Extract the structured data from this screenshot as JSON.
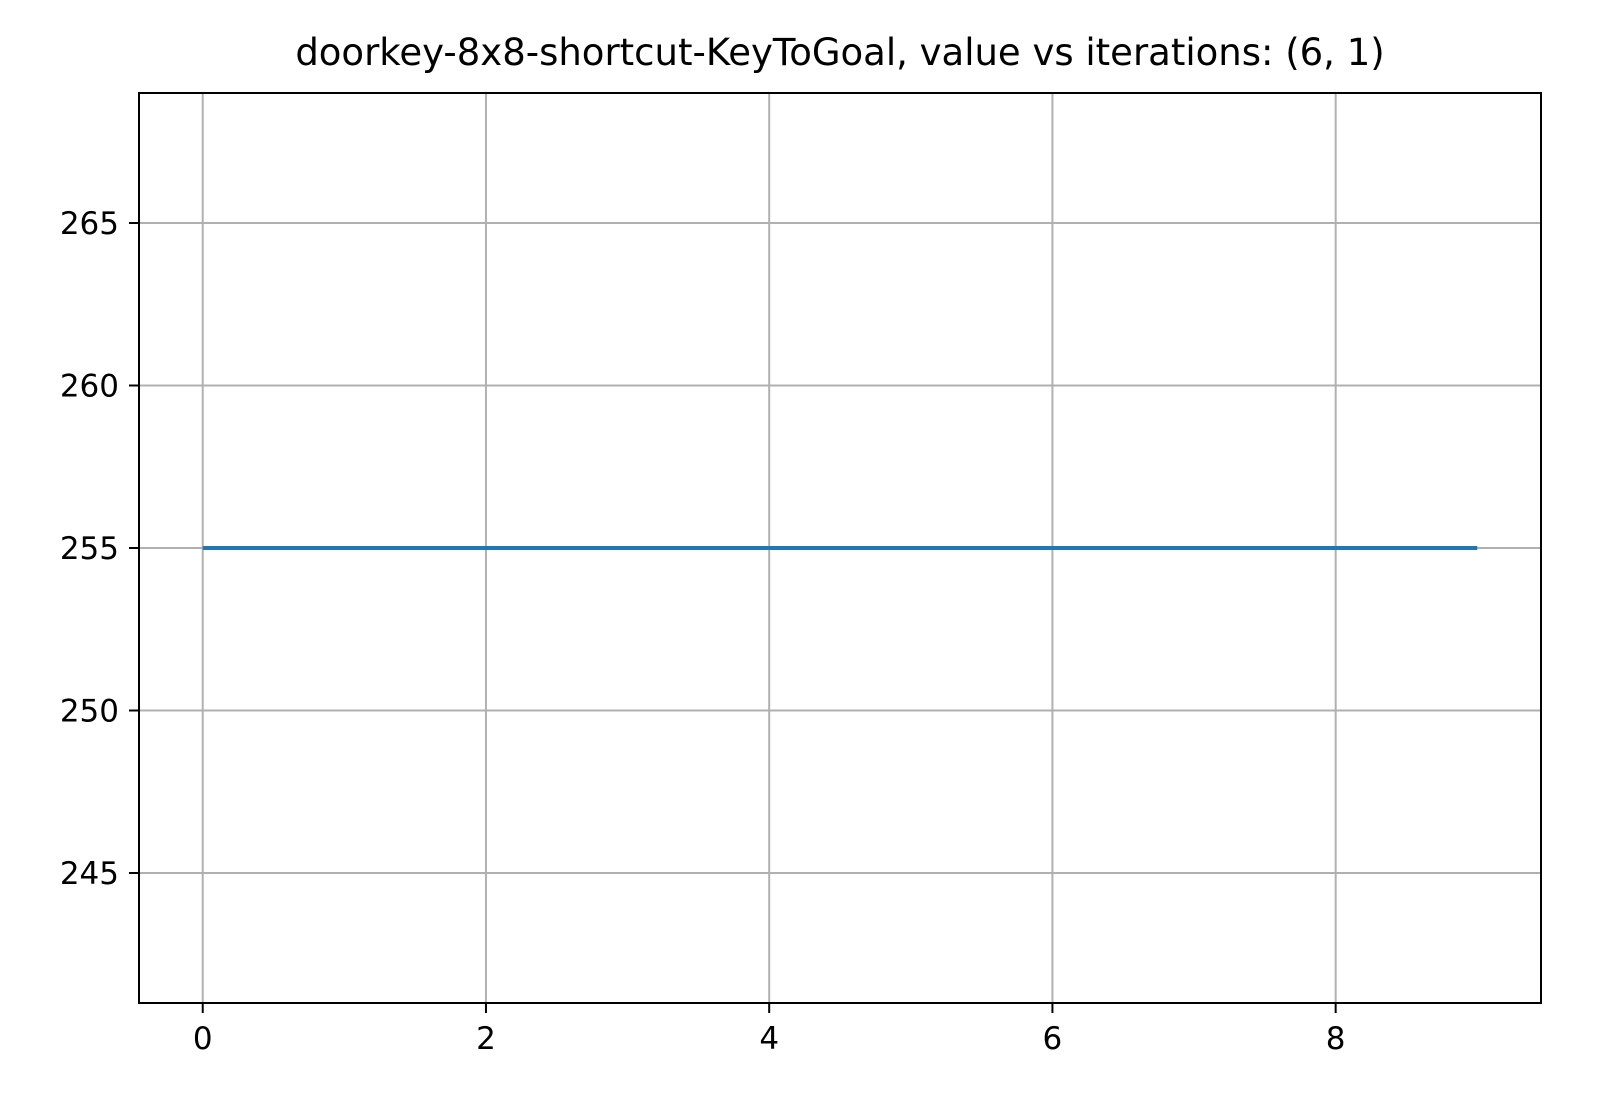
{
  "chart_data": {
    "type": "line",
    "title": "doorkey-8x8-shortcut-KeyToGoal, value vs iterations: (6, 1)",
    "xlabel": "",
    "ylabel": "",
    "xlim": [
      -0.45,
      9.45
    ],
    "ylim": [
      241.0,
      269.0
    ],
    "xticks": [
      0,
      2,
      4,
      6,
      8
    ],
    "yticks": [
      245,
      250,
      255,
      260,
      265
    ],
    "grid": true,
    "series": [
      {
        "color": "#1f77b4",
        "x": [
          0,
          1,
          2,
          3,
          4,
          5,
          6,
          7,
          8,
          9
        ],
        "y": [
          255,
          255,
          255,
          255,
          255,
          255,
          255,
          255,
          255,
          255
        ]
      }
    ]
  }
}
